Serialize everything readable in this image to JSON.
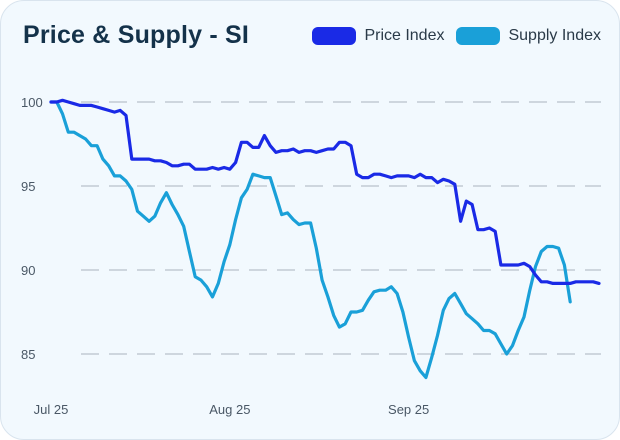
{
  "chart_data": {
    "type": "line",
    "title": "Price & Supply - SI",
    "xlabel": "",
    "ylabel": "",
    "ylim": [
      82.5,
      101
    ],
    "y_ticks": [
      100,
      95,
      90,
      85
    ],
    "x_ticks": [
      {
        "label": "Jul 25",
        "index": 0
      },
      {
        "label": "Aug 25",
        "index": 31
      },
      {
        "label": "Sep 25",
        "index": 62
      }
    ],
    "grid": true,
    "legend": "top-right",
    "series": [
      {
        "name": "Price Index",
        "color": "#1a2ae6",
        "values": [
          100.0,
          100.0,
          100.1,
          100.0,
          99.9,
          99.8,
          99.8,
          99.8,
          99.7,
          99.6,
          99.5,
          99.4,
          99.5,
          99.2,
          96.6,
          96.6,
          96.6,
          96.6,
          96.5,
          96.5,
          96.4,
          96.2,
          96.2,
          96.3,
          96.3,
          96.0,
          96.0,
          96.0,
          96.1,
          96.0,
          96.1,
          96.0,
          96.4,
          97.6,
          97.6,
          97.3,
          97.3,
          98.0,
          97.4,
          97.0,
          97.1,
          97.1,
          97.2,
          97.0,
          97.1,
          97.1,
          97.0,
          97.1,
          97.2,
          97.2,
          97.6,
          97.6,
          97.4,
          95.7,
          95.5,
          95.5,
          95.7,
          95.7,
          95.6,
          95.5,
          95.6,
          95.6,
          95.6,
          95.5,
          95.7,
          95.5,
          95.5,
          95.2,
          95.4,
          95.3,
          95.1,
          92.9,
          94.1,
          93.9,
          92.4,
          92.4,
          92.5,
          92.3,
          90.3,
          90.3,
          90.3,
          90.3,
          90.4,
          90.2,
          89.7,
          89.3,
          89.3,
          89.2,
          89.2,
          89.2,
          89.2,
          89.3,
          89.3,
          89.3,
          89.3,
          89.2
        ]
      },
      {
        "name": "Supply Index",
        "color": "#1aa0d8",
        "values": [
          100.0,
          100.0,
          99.3,
          98.2,
          98.2,
          98.0,
          97.8,
          97.4,
          97.4,
          96.6,
          96.2,
          95.6,
          95.6,
          95.3,
          94.8,
          93.5,
          93.2,
          92.9,
          93.2,
          94.0,
          94.6,
          93.9,
          93.3,
          92.6,
          91.1,
          89.6,
          89.4,
          89.0,
          88.4,
          89.2,
          90.5,
          91.5,
          93.0,
          94.3,
          94.8,
          95.7,
          95.6,
          95.5,
          95.5,
          94.4,
          93.3,
          93.4,
          93.0,
          92.7,
          92.8,
          92.8,
          91.3,
          89.4,
          88.4,
          87.3,
          86.6,
          86.8,
          87.5,
          87.5,
          87.6,
          88.2,
          88.7,
          88.8,
          88.8,
          89.0,
          88.6,
          87.5,
          86.0,
          84.6,
          84.0,
          83.6,
          84.8,
          86.1,
          87.6,
          88.3,
          88.6,
          88.0,
          87.4,
          87.1,
          86.8,
          86.4,
          86.4,
          86.2,
          85.6,
          85.0,
          85.5,
          86.4,
          87.2,
          88.8,
          90.2,
          91.1,
          91.4,
          91.4,
          91.3,
          90.3,
          88.1
        ]
      }
    ]
  }
}
